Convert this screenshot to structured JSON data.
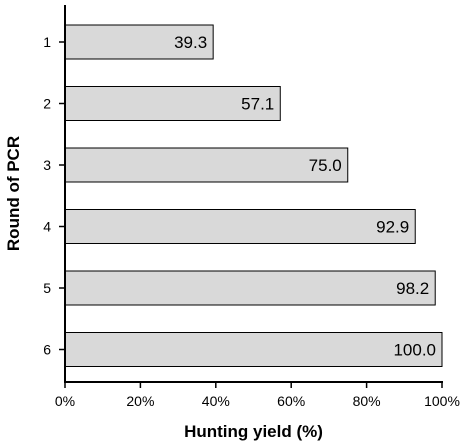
{
  "chart_data": {
    "type": "bar",
    "orientation": "horizontal",
    "title": "",
    "xlabel": "Hunting yield (%)",
    "ylabel": "Round of PCR",
    "categories": [
      "1",
      "2",
      "3",
      "4",
      "5",
      "6"
    ],
    "values": [
      39.3,
      57.1,
      75.0,
      92.9,
      98.2,
      100.0
    ],
    "data_labels": [
      "39.3",
      "57.1",
      "75.0",
      "92.9",
      "98.2",
      "100.0"
    ],
    "xlim": [
      0,
      100
    ],
    "xticks": [
      0,
      20,
      40,
      60,
      80,
      100
    ],
    "xtick_labels": [
      "0%",
      "20%",
      "40%",
      "60%",
      "80%",
      "100%"
    ],
    "grid": false,
    "legend": "none",
    "colors": {
      "bar_fill": "#d9d9d9",
      "bar_stroke": "#000000"
    }
  }
}
